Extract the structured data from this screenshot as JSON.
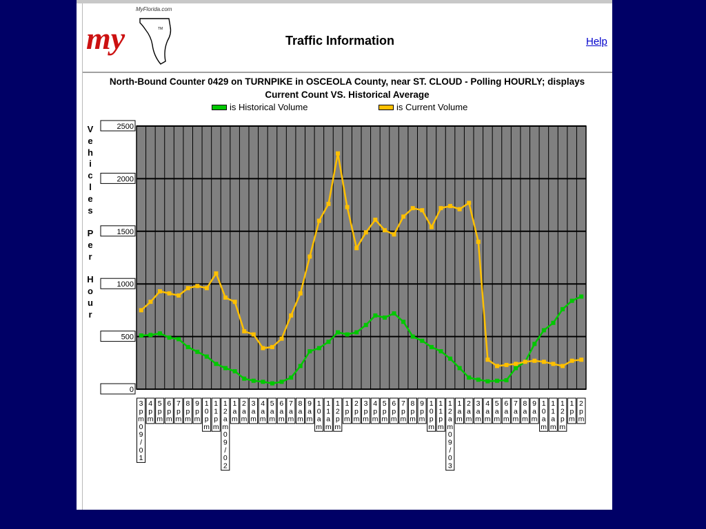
{
  "header": {
    "logo_text": "my",
    "logo_site": "MyFlorida.com",
    "logo_tm": "TM",
    "title": "Traffic Information",
    "help_label": "Help"
  },
  "colors": {
    "background": "#000066",
    "plot_area": "#808080",
    "historical": "#00c800",
    "current": "#ffc000",
    "logo_red": "#cc1111",
    "link": "#0000cc"
  },
  "chart_data": {
    "type": "line",
    "title_line1": "North-Bound Counter 0429 on TURNPIKE in OSCEOLA County, near ST. CLOUD - Polling HOURLY; displays",
    "title_line2": "Current Count VS. Historical Average",
    "ylabel": "Vehicles Per Hour",
    "ylabel_lines": [
      "Vehicles",
      "Per",
      "Hour"
    ],
    "ylim": [
      0,
      2500
    ],
    "yticks": [
      0,
      500,
      1000,
      1500,
      2000,
      2500
    ],
    "ytick_labels": [
      "0",
      "500",
      "1000",
      "1500",
      "2000",
      "2500"
    ],
    "grid": true,
    "legend_position": "top",
    "legend": [
      {
        "label": "is Historical Volume",
        "color": "#00c800"
      },
      {
        "label": "is Current Volume",
        "color": "#ffc000"
      }
    ],
    "categories": [
      "3pm09/01",
      "4pm",
      "5pm",
      "6pm",
      "7pm",
      "8pm",
      "9pm",
      "10pm",
      "11pm",
      "12am09/02",
      "1am",
      "2am",
      "3am",
      "4am",
      "5am",
      "6am",
      "7am",
      "8am",
      "9am",
      "10am",
      "11am",
      "12pm",
      "1pm",
      "2pm",
      "3pm",
      "4pm",
      "5pm",
      "6pm",
      "7pm",
      "8pm",
      "9pm",
      "10pm",
      "11pm",
      "12am09/03",
      "1am",
      "2am",
      "3am",
      "4am",
      "5am",
      "6am",
      "7am",
      "8am",
      "9am",
      "10am",
      "11am",
      "12pm",
      "1pm",
      "2pm"
    ],
    "series": [
      {
        "name": "is Historical Volume",
        "color": "#00c800",
        "values": [
          510,
          515,
          530,
          490,
          475,
          400,
          355,
          310,
          240,
          200,
          170,
          100,
          80,
          70,
          55,
          70,
          110,
          220,
          360,
          390,
          450,
          540,
          520,
          540,
          610,
          700,
          680,
          720,
          640,
          500,
          460,
          400,
          360,
          290,
          200,
          110,
          90,
          75,
          80,
          85,
          200,
          260,
          430,
          560,
          630,
          760,
          840,
          880
        ]
      },
      {
        "name": "is Current Volume",
        "color": "#ffc000",
        "values": [
          750,
          830,
          930,
          910,
          890,
          960,
          980,
          960,
          1100,
          870,
          830,
          550,
          520,
          390,
          400,
          480,
          700,
          910,
          1260,
          1600,
          1760,
          2240,
          1730,
          1340,
          1490,
          1610,
          1510,
          1470,
          1640,
          1720,
          1700,
          1540,
          1720,
          1740,
          1710,
          1770,
          1400,
          280,
          220,
          230,
          240,
          260,
          270,
          260,
          240,
          220,
          270,
          280
        ]
      }
    ]
  }
}
